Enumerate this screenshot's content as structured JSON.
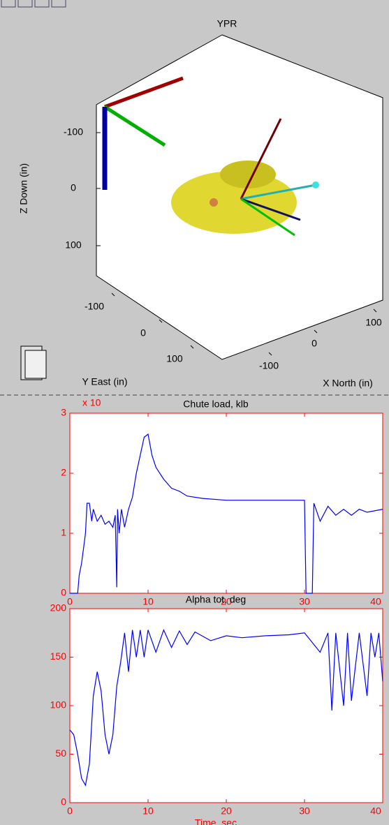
{
  "chart_data": [
    {
      "type": "3d",
      "title": "YPR",
      "zlabel": "Z Down (in)",
      "ylabel": "Y East (in)",
      "xlabel": "X North (in)",
      "zticks": [
        -100,
        0,
        100
      ],
      "yticks": [
        -100,
        0,
        100
      ],
      "xticks": [
        -100,
        0,
        100
      ]
    },
    {
      "type": "line",
      "title": "Chute load, klb",
      "multiplier": "x 10",
      "color": "#0000ff",
      "xlim": [
        0,
        40
      ],
      "xticks": [
        0,
        10,
        20,
        30,
        40
      ],
      "ylim": [
        0,
        3
      ],
      "yticks": [
        0,
        1,
        2,
        3
      ],
      "x": [
        0,
        1,
        1.2,
        1.5,
        1.8,
        2,
        2.2,
        2.5,
        2.8,
        3,
        3.5,
        4,
        4.5,
        5,
        5.5,
        5.8,
        6,
        6.1,
        6.3,
        6.6,
        7,
        7.5,
        8,
        8.5,
        9,
        9.5,
        10,
        10.5,
        11,
        12,
        13,
        14,
        15,
        17,
        20,
        25,
        30,
        30.2,
        31,
        31.2,
        32,
        33,
        34,
        35,
        36,
        37,
        38,
        40
      ],
      "values": [
        0,
        0,
        0.3,
        0.5,
        0.8,
        1.0,
        1.5,
        1.5,
        1.2,
        1.4,
        1.2,
        1.3,
        1.15,
        1.2,
        1.1,
        1.3,
        0.1,
        1.4,
        1.0,
        1.4,
        1.1,
        1.4,
        1.6,
        2.0,
        2.3,
        2.6,
        2.65,
        2.3,
        2.1,
        1.9,
        1.75,
        1.7,
        1.62,
        1.58,
        1.55,
        1.55,
        1.55,
        0,
        0,
        1.5,
        1.2,
        1.45,
        1.3,
        1.4,
        1.3,
        1.4,
        1.35,
        1.4
      ]
    },
    {
      "type": "line",
      "title": "Alpha tot, deg",
      "xlabel": "Time, sec",
      "color": "#0000ff",
      "xlim": [
        0,
        40
      ],
      "xticks": [
        0,
        10,
        20,
        30,
        40
      ],
      "ylim": [
        0,
        200
      ],
      "yticks": [
        0,
        50,
        100,
        150,
        200
      ],
      "x": [
        0,
        0.5,
        1,
        1.5,
        2,
        2.5,
        3,
        3.5,
        4,
        4.5,
        5,
        5.5,
        6,
        6.5,
        7,
        7.5,
        8,
        8.5,
        9,
        9.5,
        10,
        11,
        12,
        13,
        14,
        15,
        16,
        18,
        20,
        22,
        25,
        28,
        30,
        31,
        32,
        33,
        33.5,
        34,
        35,
        35.5,
        36,
        37,
        38,
        38.5,
        39,
        39.5,
        40
      ],
      "values": [
        75,
        70,
        50,
        25,
        18,
        40,
        110,
        135,
        115,
        70,
        50,
        70,
        120,
        145,
        175,
        135,
        178,
        150,
        178,
        150,
        178,
        155,
        178,
        160,
        177,
        163,
        176,
        167,
        172,
        170,
        172,
        173,
        175,
        165,
        155,
        175,
        95,
        175,
        100,
        175,
        105,
        175,
        110,
        175,
        150,
        175,
        125
      ]
    }
  ]
}
